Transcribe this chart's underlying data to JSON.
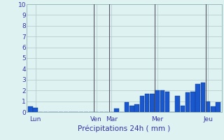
{
  "title": "",
  "xlabel": "Précipitations 24h ( mm )",
  "background_color": "#dff2f2",
  "bar_color": "#1a56cc",
  "bar_edge_color": "#0a3a8a",
  "ylim": [
    0,
    10
  ],
  "yticks": [
    0,
    1,
    2,
    3,
    4,
    5,
    6,
    7,
    8,
    9,
    10
  ],
  "grid_color": "#b0c8c8",
  "bar_values": [
    0.5,
    0.4,
    0.0,
    0.0,
    0.0,
    0.0,
    0.0,
    0.0,
    0.0,
    0.0,
    0.0,
    0.0,
    0.0,
    0.0,
    0.0,
    0.0,
    0.0,
    0.3,
    0.0,
    0.9,
    0.6,
    0.7,
    1.5,
    1.7,
    1.7,
    2.0,
    2.0,
    1.9,
    0.0,
    1.5,
    0.6,
    1.8,
    1.9,
    2.6,
    2.7,
    1.0,
    0.5,
    0.9
  ],
  "day_labels": [
    "Lun",
    "Ven",
    "Mar",
    "Mer",
    "Jeu"
  ],
  "day_positions": [
    1,
    13,
    16,
    25,
    35
  ],
  "vline_positions": [
    12.5,
    15.5,
    24.5,
    34.5
  ],
  "vline_color": "#555566",
  "ylabel_color": "#3333aa",
  "tick_color": "#3333aa",
  "spine_color": "#99bbbb"
}
